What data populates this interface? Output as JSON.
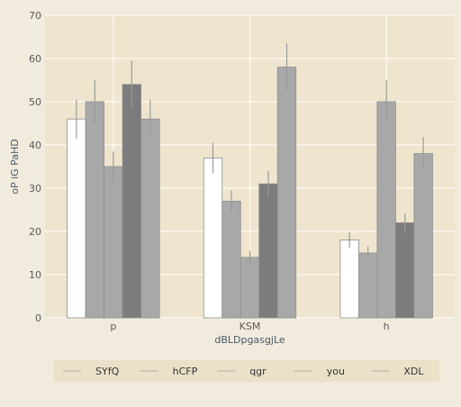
{
  "chart_data": {
    "type": "bar",
    "title": "",
    "xlabel": "dBLDpgasgjLe",
    "ylabel": "oP iG PaHD",
    "categories": [
      "p",
      "KSM",
      "h"
    ],
    "ylim": [
      0,
      70
    ],
    "yticks": [
      0,
      10,
      20,
      30,
      40,
      50,
      60,
      70
    ],
    "grid": true,
    "legend_position": "bottom",
    "error_bars": true,
    "series": [
      {
        "name": "SYfQ",
        "values": [
          46,
          37,
          18
        ],
        "errors": [
          4.5,
          3.5,
          1.8
        ],
        "color": "#ffffff"
      },
      {
        "name": "hCFP",
        "values": [
          50,
          27,
          15
        ],
        "errors": [
          5,
          2.5,
          1.5
        ],
        "color": "#a8a8a8"
      },
      {
        "name": "qgr",
        "values": [
          35,
          14,
          50
        ],
        "errors": [
          3.5,
          1.5,
          5
        ],
        "color": "#a8a8a8"
      },
      {
        "name": "you",
        "values": [
          54,
          31,
          22
        ],
        "errors": [
          5.5,
          3,
          2.2
        ],
        "color": "#7c7c7c"
      },
      {
        "name": "XDL",
        "values": [
          46,
          58,
          38
        ],
        "errors": [
          4.5,
          5.5,
          3.8
        ],
        "color": "#a8a8a8"
      }
    ],
    "colors": {
      "plot_background": "#efe5ce",
      "page_background": "#f1ebdd",
      "legend_background": "#ebe1c8",
      "bar_stroke": "#8e8e8e",
      "error_bar": "#9a9a9a",
      "grid": "#ffffff"
    }
  }
}
